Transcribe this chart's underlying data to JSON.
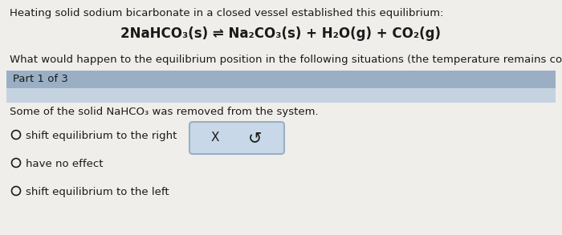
{
  "outer_bg": "#c8c8c8",
  "inner_bg": "#f0eeeb",
  "header_text": "Heating solid sodium bicarbonate in a closed vessel established this equilibrium:",
  "equation": "2NaHCO₃(s) ⇌ Na₂CO₃(s) + H₂O(g) + CO₂(g)",
  "question_text": "What would happen to the equilibrium position in the following situations (the temperature remains constant)?",
  "part_label": "Part 1 of 3",
  "part_bg": "#9aafc4",
  "part_bg_light": "#c5d3e0",
  "scenario": "Some of the solid NaHCO₃ was removed from the system.",
  "options": [
    "shift equilibrium to the right",
    "have no effect",
    "shift equilibrium to the left"
  ],
  "button_x": "X",
  "button_undo": "↺",
  "button_bg": "#c8d8e8",
  "button_border": "#9aafc4",
  "text_color": "#1a1a1a",
  "font_size_header": 9.5,
  "font_size_eq": 12,
  "font_size_question": 9.5,
  "font_size_part": 9.5,
  "font_size_scenario": 9.5,
  "font_size_options": 9.5,
  "font_size_button": 11
}
